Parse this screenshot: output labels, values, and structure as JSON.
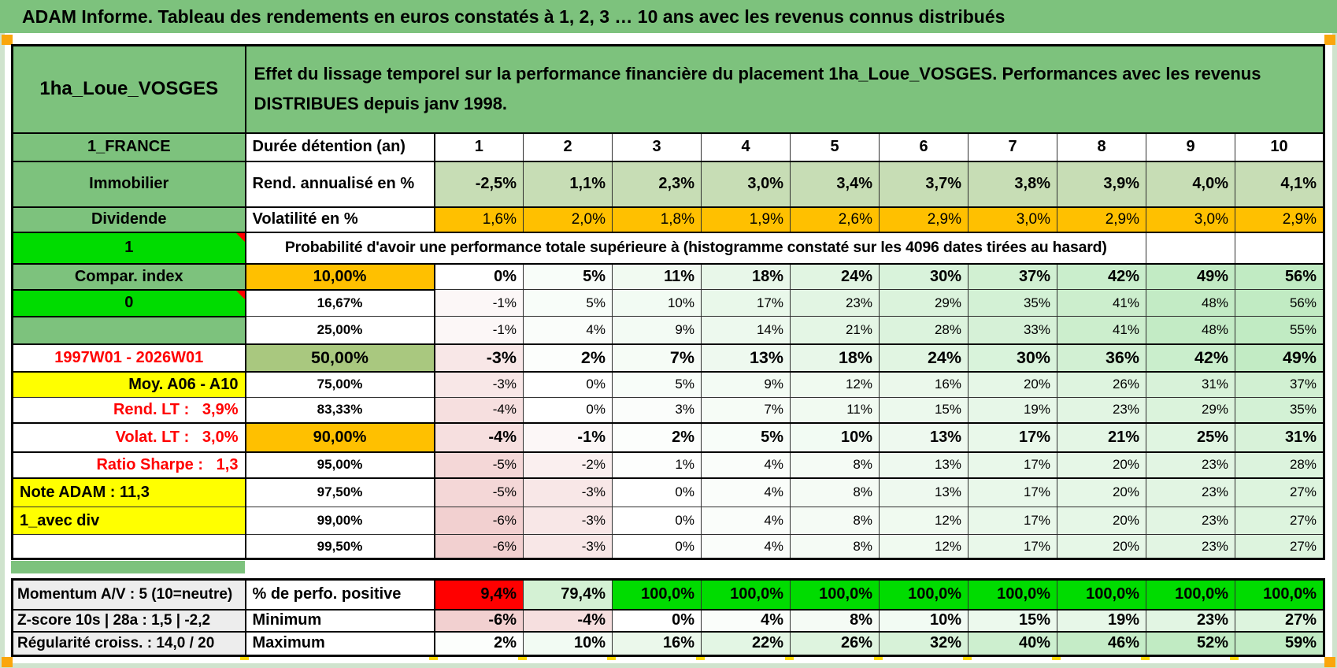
{
  "title": "ADAM Informe. Tableau des rendements en euros constatés à 1, 2, 3 … 10 ans avec les revenus connus distribués",
  "header": {
    "name": "1ha_Loue_VOSGES",
    "description_lines": [
      "Effet du lissage temporel sur la performance financière du placement 1ha_Loue_VOSGES. Performances avec les revenus",
      "DISTRIBUES depuis janv 1998."
    ]
  },
  "columns": [
    "1",
    "2",
    "3",
    "4",
    "5",
    "6",
    "7",
    "8",
    "9",
    "10"
  ],
  "duree": {
    "label_a": "1_FRANCE",
    "label_b": "Durée détention (an)"
  },
  "rend": {
    "label_a": "Immobilier",
    "label_b": "Rend. annualisé en %",
    "values": [
      "-2,5%",
      "1,1%",
      "2,3%",
      "3,0%",
      "3,4%",
      "3,7%",
      "3,8%",
      "3,9%",
      "4,0%",
      "4,1%"
    ]
  },
  "volat": {
    "label_a": "Dividende",
    "label_b": "Volatilité en %",
    "values": [
      "1,6%",
      "2,0%",
      "1,8%",
      "1,9%",
      "2,6%",
      "2,9%",
      "3,0%",
      "2,9%",
      "3,0%",
      "2,9%"
    ]
  },
  "proba": {
    "label_a": "1",
    "text": "Probabilité d'avoir une performance totale supérieure à (histogramme constaté sur les 4096 dates tirées au hasard)"
  },
  "prob_rows": [
    {
      "label": "Compar. index",
      "a_bg": "green",
      "t": "10,00%",
      "t_bg": "orange",
      "size": "bold",
      "values": [
        0,
        5,
        11,
        18,
        24,
        30,
        37,
        42,
        49,
        56
      ]
    },
    {
      "label": "0",
      "a_bg": "lime",
      "a_tri": true,
      "t": "16,67%",
      "size": "small",
      "values": [
        -1,
        5,
        10,
        17,
        23,
        29,
        35,
        41,
        48,
        56
      ]
    },
    {
      "label": "",
      "a_bg": "green",
      "t": "25,00%",
      "size": "small",
      "sep": true,
      "values": [
        -1,
        4,
        9,
        14,
        21,
        28,
        33,
        41,
        48,
        55
      ]
    },
    {
      "label": "1997W01 - 2026W01",
      "a_bg": "white",
      "a_red": true,
      "t": "50,00%",
      "t_bg": "sage",
      "size": "big",
      "sep": true,
      "values": [
        -3,
        2,
        7,
        13,
        18,
        24,
        30,
        36,
        42,
        49
      ]
    },
    {
      "label": "Moy. A06 - A10",
      "a_bg": "yellow",
      "a_align": "right",
      "t": "75,00%",
      "size": "small",
      "values": [
        -3,
        0,
        5,
        9,
        12,
        16,
        20,
        26,
        31,
        37
      ]
    },
    {
      "label": "Rend. LT :   3,9%",
      "a_bg": "white",
      "a_red": true,
      "a_align": "right",
      "t": "83,33%",
      "size": "small",
      "sep": true,
      "values": [
        -4,
        0,
        3,
        7,
        11,
        15,
        19,
        23,
        29,
        35
      ]
    },
    {
      "label": "Volat. LT :   3,0%",
      "a_bg": "white",
      "a_red": true,
      "a_align": "right",
      "t": "90,00%",
      "t_bg": "orange",
      "size": "bold",
      "sep": true,
      "values": [
        -4,
        -1,
        2,
        5,
        10,
        13,
        17,
        21,
        25,
        31
      ]
    },
    {
      "label": "Ratio Sharpe :   1,3",
      "a_bg": "white",
      "a_red": true,
      "a_align": "right",
      "t": "95,00%",
      "size": "small",
      "sep": true,
      "values": [
        -5,
        -2,
        1,
        4,
        8,
        13,
        17,
        20,
        23,
        28
      ]
    },
    {
      "label": "Note ADAM : 11,3",
      "a_bg": "yellow",
      "a_align": "left",
      "t": "97,50%",
      "size": "small",
      "values": [
        -5,
        -3,
        0,
        4,
        8,
        13,
        17,
        20,
        23,
        27
      ]
    },
    {
      "label": "1_avec div",
      "a_bg": "yellow",
      "a_align": "left",
      "t": "99,00%",
      "size": "small",
      "values": [
        -6,
        -3,
        0,
        4,
        8,
        12,
        17,
        20,
        23,
        27
      ]
    },
    {
      "label": "",
      "a_bg": "white",
      "t": "99,50%",
      "size": "small",
      "values": [
        -6,
        -3,
        0,
        4,
        8,
        12,
        17,
        20,
        23,
        27
      ]
    }
  ],
  "bottom_rows": [
    {
      "label_a": "Momentum A/V : 5 (10=neutre)",
      "label_b": "% de perfo. positive",
      "values": [
        "9,4%",
        "79,4%",
        "100,0%",
        "100,0%",
        "100,0%",
        "100,0%",
        "100,0%",
        "100,0%",
        "100,0%",
        "100,0%"
      ],
      "cell_colors": [
        "#ff0000",
        "#d4f1d4",
        "#00dc00",
        "#00dc00",
        "#00dc00",
        "#00dc00",
        "#00dc00",
        "#00dc00",
        "#00dc00",
        "#00dc00"
      ]
    },
    {
      "label_a": "Z-score 10s | 28a : 1,5 | -2,2",
      "label_b": "Minimum",
      "values": [
        -6,
        -4,
        0,
        4,
        8,
        10,
        15,
        19,
        23,
        27
      ]
    },
    {
      "label_a": "Régularité croiss. : 14,0 / 20",
      "label_b": "Maximum",
      "values": [
        2,
        10,
        16,
        22,
        26,
        32,
        40,
        46,
        52,
        59
      ]
    }
  ],
  "colors": {
    "green": "#7dc27d",
    "lime": "#00dc00",
    "orange": "#ffc000",
    "sage": "#a9c87f",
    "yellow": "#ffff00",
    "red": "#ff0000",
    "rend_fill": "#c7ddb5",
    "gray": "#ededed",
    "edge": "#cfe3cd",
    "marker": "#faa60c",
    "dash": "#ffd800"
  }
}
